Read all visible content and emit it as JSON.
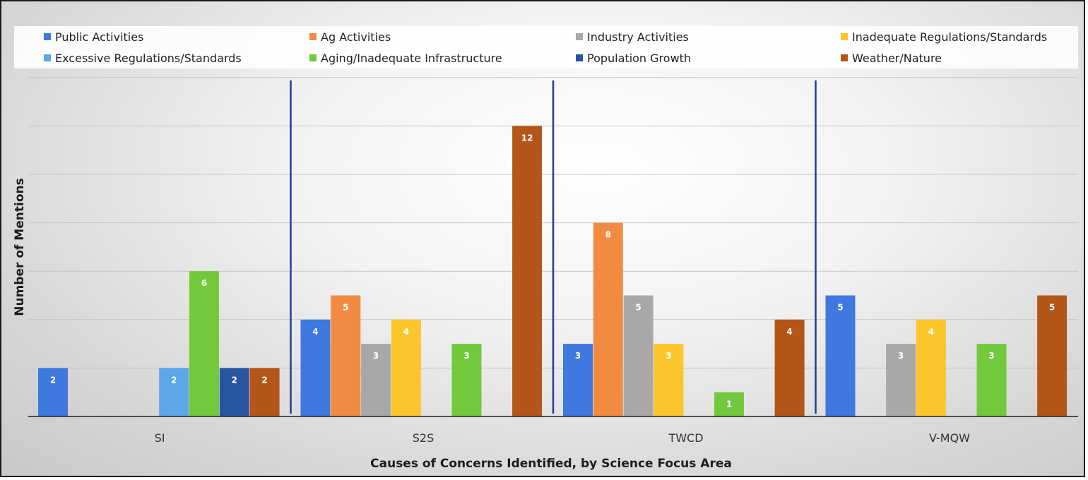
{
  "chart_data": {
    "type": "bar",
    "xlabel": "Causes of Concerns Identified, by Science Focus Area",
    "ylabel": "Number of Mentions",
    "categories": [
      "SI",
      "S2S",
      "TWCD",
      "V-MQW"
    ],
    "ylim": [
      0,
      14
    ],
    "grid": true,
    "legend_position": "top",
    "series": [
      {
        "name": "Public Activities",
        "color": "#3f78de",
        "values": [
          2,
          4,
          3,
          5
        ]
      },
      {
        "name": "Ag Activities",
        "color": "#f28b42",
        "values": [
          null,
          5,
          8,
          null
        ]
      },
      {
        "name": "Industry Activities",
        "color": "#a8a8a8",
        "values": [
          null,
          3,
          5,
          3
        ]
      },
      {
        "name": "Inadequate Regulations/Standards",
        "color": "#fdc52c",
        "values": [
          null,
          4,
          3,
          4
        ]
      },
      {
        "name": "Excessive Regulations/Standards",
        "color": "#5ba7e8",
        "values": [
          2,
          null,
          null,
          null
        ]
      },
      {
        "name": "Aging/Inadequate Infrastructure",
        "color": "#72c93c",
        "values": [
          6,
          3,
          1,
          3
        ]
      },
      {
        "name": "Population Growth",
        "color": "#27559e",
        "values": [
          2,
          null,
          null,
          null
        ]
      },
      {
        "name": "Weather/Nature",
        "color": "#b45519",
        "values": [
          2,
          12,
          4,
          5
        ]
      }
    ],
    "divider_color": "#1f3f94"
  }
}
